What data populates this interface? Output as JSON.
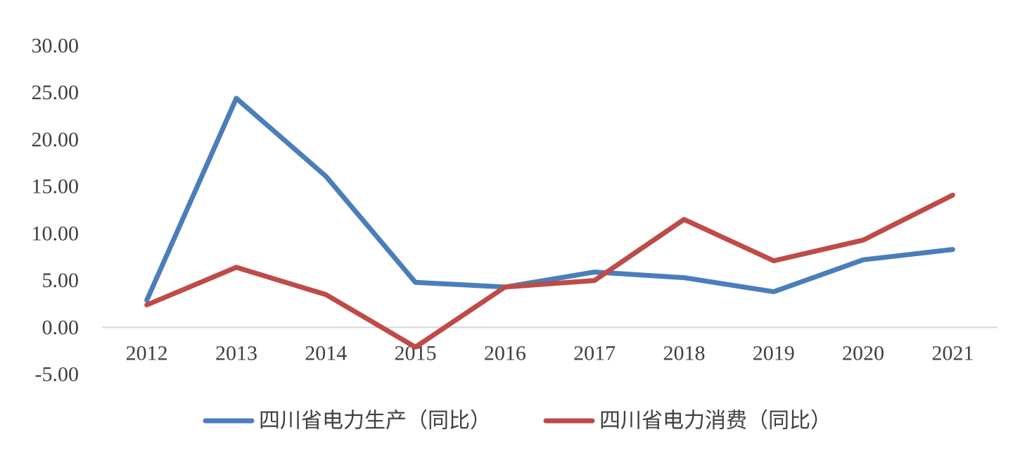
{
  "chart_data": {
    "type": "line",
    "title": "",
    "xlabel": "",
    "ylabel": "",
    "categories": [
      "2012",
      "2013",
      "2014",
      "2015",
      "2016",
      "2017",
      "2018",
      "2019",
      "2020",
      "2021"
    ],
    "ylim": [
      -5,
      30
    ],
    "yticks": [
      -5,
      0,
      5,
      10,
      15,
      20,
      25,
      30
    ],
    "ytick_labels": [
      "-5.00",
      "0.00",
      "5.00",
      "10.00",
      "15.00",
      "20.00",
      "25.00",
      "30.00"
    ],
    "grid": false,
    "legend_position": "bottom",
    "series": [
      {
        "name": "四川省电力生产（同比）",
        "color": "#4a7ebb",
        "values": [
          2.9,
          24.4,
          16.1,
          4.8,
          4.3,
          5.9,
          5.3,
          3.8,
          7.2,
          8.3
        ]
      },
      {
        "name": "四川省电力消费（同比）",
        "color": "#be4b48",
        "values": [
          2.4,
          6.4,
          3.5,
          -2.1,
          4.3,
          5.0,
          11.5,
          7.1,
          9.3,
          14.1
        ]
      }
    ]
  }
}
